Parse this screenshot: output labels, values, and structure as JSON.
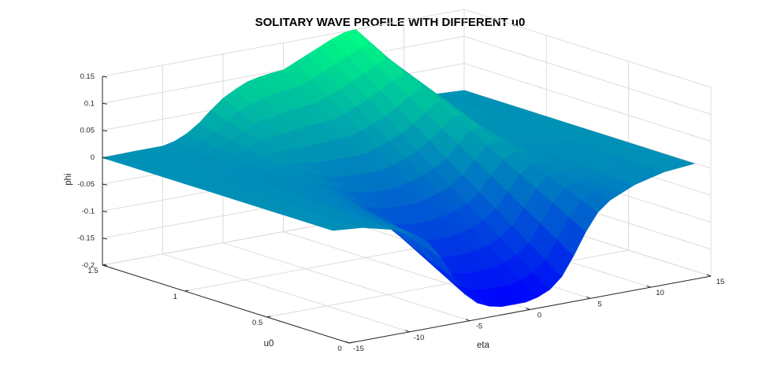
{
  "chart_data": {
    "type": "surface",
    "title": "SOLITARY WAVE PROFILE WITH DIFFERENT u0",
    "xlabel": "eta",
    "ylabel": "u0",
    "zlabel": "phi",
    "xlim": [
      -15,
      15
    ],
    "ylim": [
      0,
      1.5
    ],
    "zlim": [
      -0.2,
      0.15
    ],
    "xticks": [
      -15,
      -10,
      -5,
      0,
      5,
      10,
      15
    ],
    "xtick_labels": [
      "-15",
      "-10",
      "-5",
      "0",
      "5",
      "10",
      "15"
    ],
    "yticks": [
      0,
      0.5,
      1,
      1.5
    ],
    "ytick_labels": [
      "0",
      "0.5",
      "1",
      "1.5"
    ],
    "zticks": [
      -0.2,
      -0.15,
      -0.1,
      -0.05,
      0,
      0.05,
      0.1,
      0.15
    ],
    "ztick_labels": [
      "-0.2",
      "-0.15",
      "-0.1",
      "-0.05",
      "0",
      "0.05",
      "0.1",
      "0.15"
    ],
    "grid": true,
    "colormap": "winter",
    "colormap_low": "#0000ff",
    "colormap_high": "#00ff80",
    "eta": [
      -15,
      -12.5,
      -10,
      -9,
      -8,
      -7,
      -6,
      -5,
      -4,
      -3,
      -2,
      -1,
      0,
      1,
      2,
      3,
      4,
      5,
      6,
      7,
      8,
      9,
      10,
      12.5,
      15
    ],
    "phi": [
      -0.001,
      -0.006,
      -0.02,
      -0.03,
      -0.04,
      -0.058,
      -0.09,
      -0.13,
      -0.165,
      -0.185,
      -0.195,
      -0.2,
      -0.2,
      -0.2,
      -0.195,
      -0.185,
      -0.165,
      -0.13,
      -0.09,
      -0.058,
      -0.04,
      -0.03,
      -0.02,
      -0.006,
      -0.001
    ],
    "u0_at_front_edge": 0.1,
    "u0_at_back_edge": 1.5,
    "phi_at_back_edge": [
      -0.001,
      0.0,
      0.0,
      0.005,
      0.015,
      0.03,
      0.05,
      0.068,
      0.08,
      0.09,
      0.095,
      0.098,
      0.1,
      0.11,
      0.12,
      0.13,
      0.14,
      0.148,
      0.15,
      0.12,
      0.07,
      0.03,
      0.01,
      0.003,
      0.0
    ]
  }
}
